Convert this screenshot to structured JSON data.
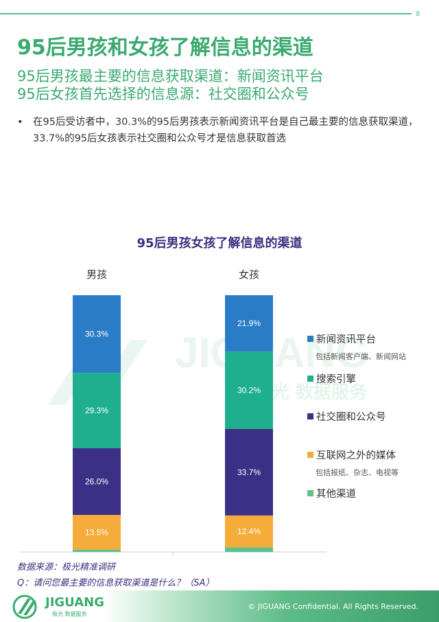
{
  "page_number": "8",
  "title": "95后男孩和女孩了解信息的渠道",
  "subtitle1": "95后男孩最主要的信息获取渠道：新闻资讯平台",
  "subtitle2": "95后女孩首先选择的信息源：社交圈和公众号",
  "bullet_symbol": "•",
  "bullet_text": "在95后受访者中，30.3%的95后男孩表示新闻资讯平台是自己最主要的信息获取渠道，33.7%的95后女孩表示社交圈和公众号才是信息获取首选",
  "watermark": {
    "brand": "JIGUANG",
    "tagline": "极光 数据服务"
  },
  "chart_data": {
    "type": "bar",
    "stacked": true,
    "title": "95后男孩女孩了解信息的渠道",
    "categories": [
      "男孩",
      "女孩"
    ],
    "series": [
      {
        "name": "新闻资讯平台",
        "note": "包括新闻客户端、新闻网站",
        "color": "#2a7cc7",
        "values": [
          30.3,
          21.9
        ],
        "labels": [
          "30.3%",
          "21.9%"
        ]
      },
      {
        "name": "搜索引擎",
        "note": "",
        "color": "#1fae8e",
        "values": [
          29.3,
          30.2
        ],
        "labels": [
          "29.3%",
          "30.2%"
        ]
      },
      {
        "name": "社交圈和公众号",
        "note": "",
        "color": "#3b2f86",
        "values": [
          26.0,
          33.7
        ],
        "labels": [
          "26.0%",
          "33.7%"
        ]
      },
      {
        "name": "互联网之外的媒体",
        "note": "包括报纸、杂志、电视等",
        "color": "#f6ac3a",
        "values": [
          13.5,
          12.4
        ],
        "labels": [
          "13.5%",
          "12.4%"
        ]
      },
      {
        "name": "其他渠道",
        "note": "",
        "color": "#5ec08a",
        "values": [
          0.9,
          1.8
        ],
        "labels": [
          "",
          ""
        ]
      }
    ],
    "ylim": [
      0,
      100
    ],
    "legend": "right"
  },
  "source_line1": "数据来源：极光精准调研",
  "source_line2": "Q：请问您最主要的信息获取渠道是什么？（SA）",
  "footer": {
    "logo_text": "JIGUANG",
    "logo_sub": "极光 数据服务",
    "copyright": "© JIGUANG  Confidential. All Rights Reserved."
  }
}
